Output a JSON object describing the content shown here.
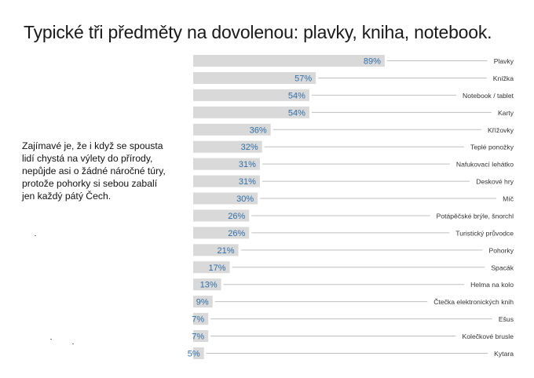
{
  "title": "Typické tři předměty na dovolenou: plavky, kniha, notebook.",
  "note_lines": [
    "Zajímavé je, že i když se spousta",
    "lidí chystá na výlety do přírody,",
    "nepůjde asi o žádné náročné túry,",
    "protože pohorky si sebou zabalí",
    "jen každý pátý Čech."
  ],
  "colors": {
    "bar": "#d9d9d9",
    "value_text": "#2f6fa8",
    "leader_line": "#bfbfbf",
    "label_text": "#333333"
  },
  "chart_data": {
    "type": "bar",
    "orientation": "horizontal",
    "unit": "%",
    "xlim": [
      0,
      100
    ],
    "grid": false,
    "categories": [
      "Plavky",
      "Knížka",
      "Notebook / tablet",
      "Karty",
      "Křížovky",
      "Teplé ponožky",
      "Nafukovací lehátko",
      "Deskové hry",
      "Míč",
      "Potápěčské brýle, šnorchl",
      "Turistický průvodce",
      "Pohorky",
      "Spacák",
      "Helma na kolo",
      "Čtečka elektronických knih",
      "Ešus",
      "Kolečkové brusle",
      "Kytara"
    ],
    "values": [
      89,
      57,
      54,
      54,
      36,
      32,
      31,
      31,
      30,
      26,
      26,
      21,
      17,
      13,
      9,
      7,
      7,
      5
    ],
    "value_labels": [
      "89%",
      "57%",
      "54%",
      "54%",
      "36%",
      "32%",
      "31%",
      "31%",
      "30%",
      "26%",
      "26%",
      "21%",
      "17%",
      "13%",
      "9%",
      "7%",
      "7%",
      "5%"
    ]
  }
}
